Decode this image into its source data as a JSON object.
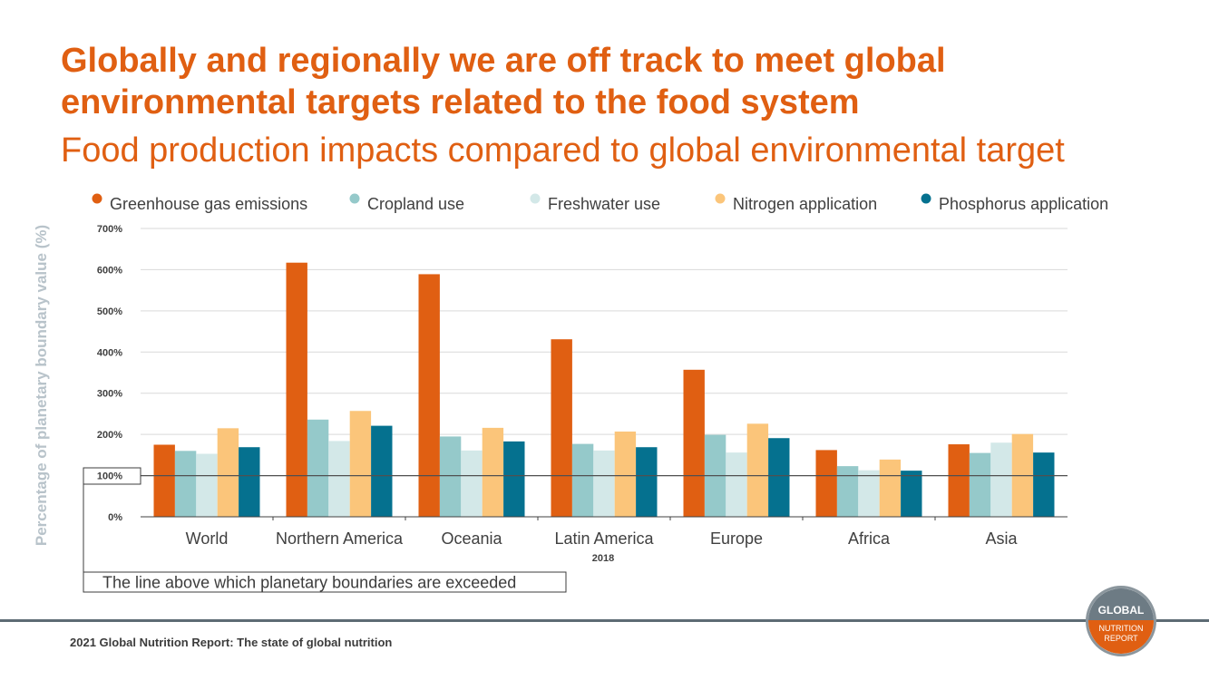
{
  "header": {
    "title": "Globally and regionally we are off track to meet global environmental targets related to the food system",
    "subtitle": "Food production impacts compared to global environmental target"
  },
  "chart_data": {
    "type": "bar",
    "categories": [
      "World",
      "Northern America",
      "Oceania",
      "Latin America",
      "Europe",
      "Africa",
      "Asia"
    ],
    "series": [
      {
        "name": "Greenhouse gas emissions",
        "color": "#e05f12",
        "values": [
          175,
          617,
          589,
          431,
          357,
          162,
          176
        ]
      },
      {
        "name": "Cropland use",
        "color": "#95c9ca",
        "values": [
          160,
          236,
          195,
          177,
          199,
          123,
          155
        ]
      },
      {
        "name": "Freshwater use",
        "color": "#d3e8e8",
        "values": [
          153,
          184,
          161,
          161,
          156,
          113,
          180
        ]
      },
      {
        "name": "Nitrogen application",
        "color": "#fbc57a",
        "values": [
          215,
          257,
          216,
          207,
          226,
          139,
          201
        ]
      },
      {
        "name": "Phosphorus application",
        "color": "#05718f",
        "values": [
          169,
          221,
          183,
          169,
          191,
          112,
          156
        ]
      }
    ],
    "yticks": [
      "0%",
      "100%",
      "200%",
      "300%",
      "400%",
      "500%",
      "600%",
      "700%"
    ],
    "ylim": [
      0,
      700
    ],
    "ylabel": "Percentage of planetary boundary value (%)",
    "xlabel": "2018",
    "grid": true,
    "legend_position": "top",
    "reference_line": {
      "value": 100,
      "annotation": "The line above which planetary boundaries are exceeded"
    }
  },
  "footer": {
    "source": "2021 Global Nutrition Report: The state of global nutrition"
  },
  "logo": {
    "line1": "GLOBAL",
    "line2": "NUTRITION",
    "line3": "REPORT"
  }
}
